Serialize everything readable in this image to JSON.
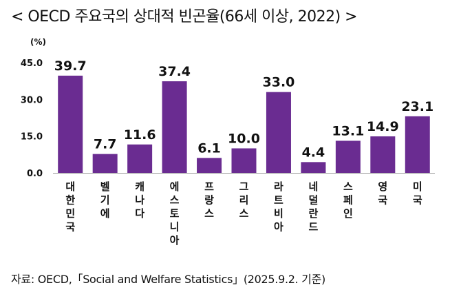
{
  "title": "< OECD 주요국의 상대적 빈곤율(66세 이상, 2022) >",
  "unit_label": "(%)",
  "source": "자료: OECD,「Social and Welfare Statistics」(2025.9.2. 기준)",
  "colors": {
    "bar": "#6a2c91",
    "axis": "#9a9a9a"
  },
  "chart_data": {
    "type": "bar",
    "title": "< OECD 주요국의 상대적 빈곤율(66세 이상, 2022) >",
    "xlabel": "",
    "ylabel": "(%)",
    "ylim": [
      0,
      45
    ],
    "yticks": [
      "0.0",
      "15.0",
      "30.0",
      "45.0"
    ],
    "grid": false,
    "categories": [
      "대한민국",
      "벨기에",
      "캐나다",
      "에스토니아",
      "프랑스",
      "그리스",
      "라트비아",
      "네덜란드",
      "스페인",
      "영국",
      "미국"
    ],
    "values": [
      39.7,
      7.7,
      11.6,
      37.4,
      6.1,
      10.0,
      33.0,
      4.4,
      13.1,
      14.9,
      23.1
    ],
    "value_labels": [
      "39.7",
      "7.7",
      "11.6",
      "37.4",
      "6.1",
      "10.0",
      "33.0",
      "4.4",
      "13.1",
      "14.9",
      "23.1"
    ]
  }
}
